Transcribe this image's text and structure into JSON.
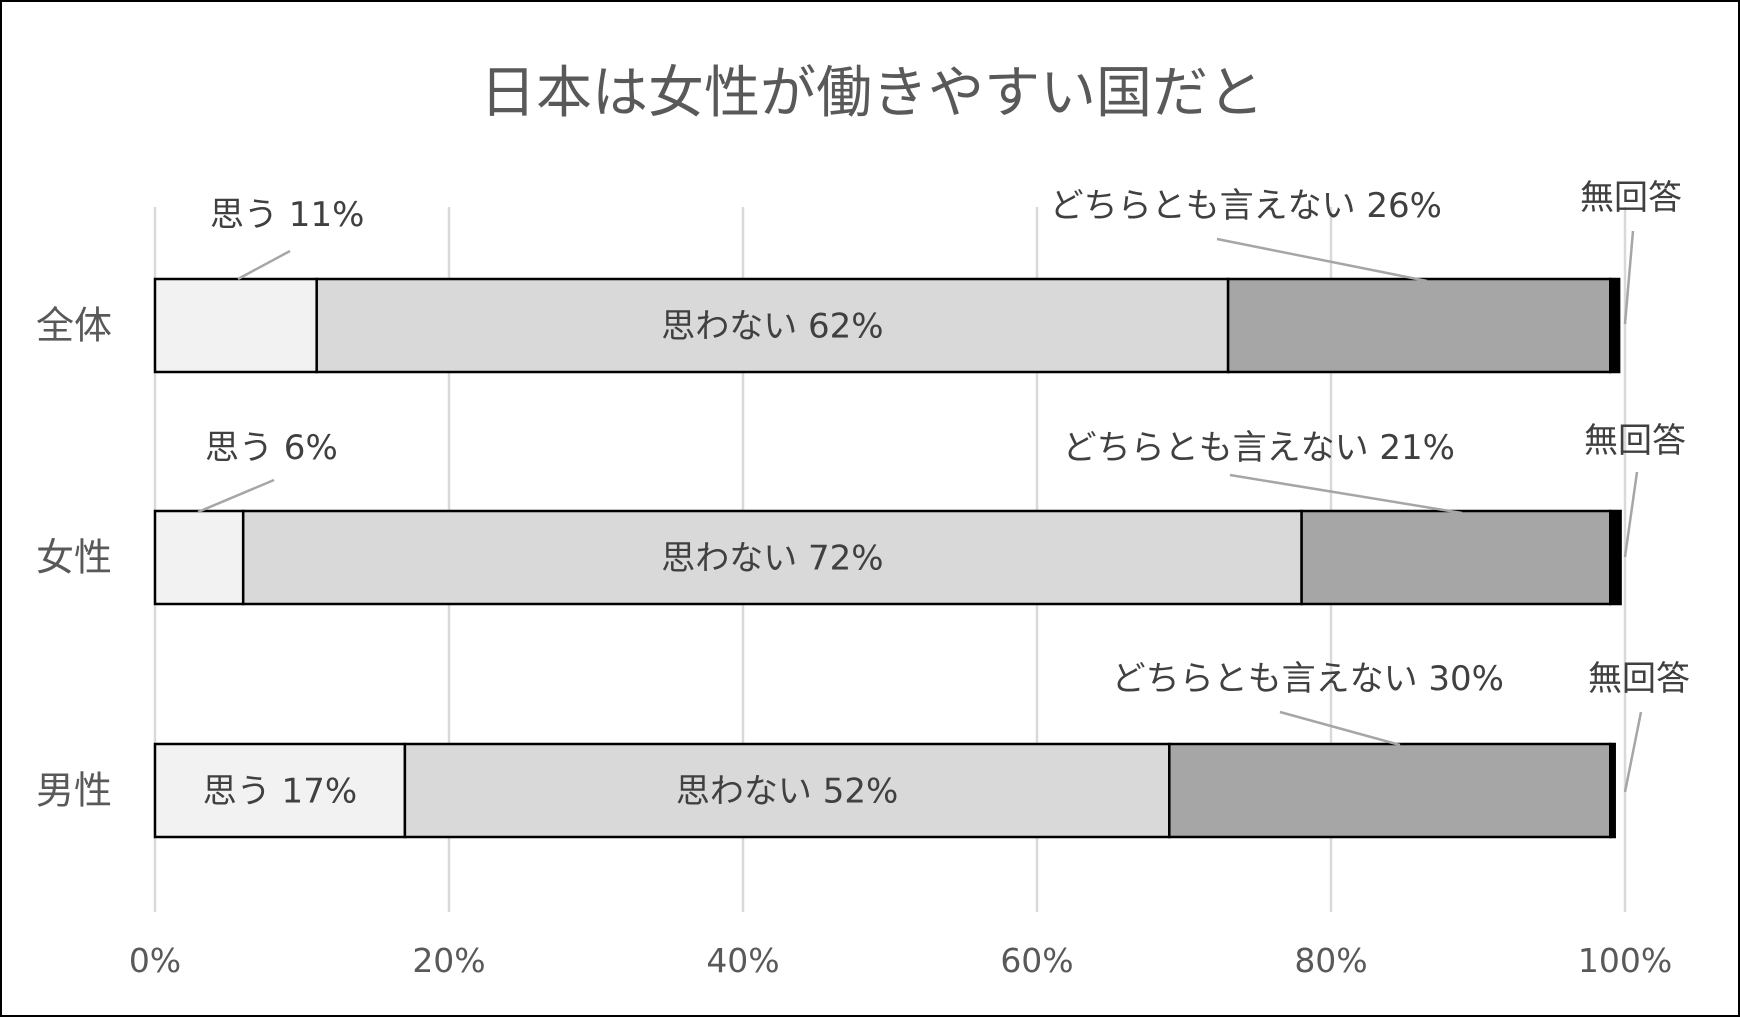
{
  "chart_data": {
    "type": "bar",
    "orientation": "horizontal",
    "stacked": "percent",
    "title": "日本は女性が働きやすい国だと",
    "categories": [
      "全体",
      "女性",
      "男性"
    ],
    "series": [
      {
        "name": "思う",
        "color": "#f2f2f2",
        "values": [
          11,
          6,
          17
        ]
      },
      {
        "name": "思わない",
        "color": "#d9d9d9",
        "values": [
          62,
          72,
          52
        ]
      },
      {
        "name": "どちらとも言えない",
        "color": "#a6a6a6",
        "values": [
          26,
          21,
          30
        ]
      },
      {
        "name": "無回答",
        "color": "#000000",
        "values": [
          0.6,
          0.7,
          0.3
        ]
      }
    ],
    "data_labels": [
      [
        "思う 11%",
        "思わない 62%",
        "どちらとも言えない 26%",
        "無回答"
      ],
      [
        "思う 6%",
        "思わない 72%",
        "どちらとも言えない 21%",
        "無回答"
      ],
      [
        "思う 17%",
        "思わない 52%",
        "どちらとも言えない 30%",
        "無回答"
      ]
    ],
    "xlim": [
      0,
      100
    ],
    "x_ticks": [
      "0%",
      "20%",
      "40%",
      "60%",
      "80%",
      "100%"
    ],
    "grid": true,
    "legend": "none"
  }
}
